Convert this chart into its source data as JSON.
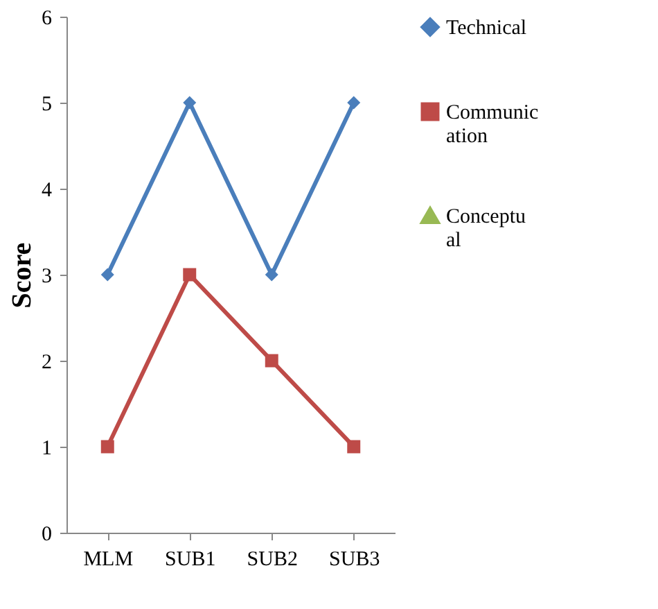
{
  "chart_data": {
    "type": "line",
    "ylabel": "Score",
    "categories": [
      "MLM",
      "SUB1",
      "SUB2",
      "SUB3"
    ],
    "series": [
      {
        "name": "Technical",
        "color": "#4a7ebb",
        "marker": "diamond",
        "values": [
          3,
          5,
          3,
          5
        ]
      },
      {
        "name": "Communication",
        "color": "#be4b48",
        "marker": "square",
        "values": [
          1,
          3,
          2,
          1
        ]
      },
      {
        "name": "Conceptual",
        "color": "#98b954",
        "marker": "triangle",
        "values": [
          null,
          null,
          null,
          null
        ]
      }
    ],
    "ylim": [
      0,
      6
    ],
    "yticks": [
      0,
      1,
      2,
      3,
      4,
      5,
      6
    ],
    "grid": false,
    "legend": "right",
    "line_style": "solid"
  }
}
